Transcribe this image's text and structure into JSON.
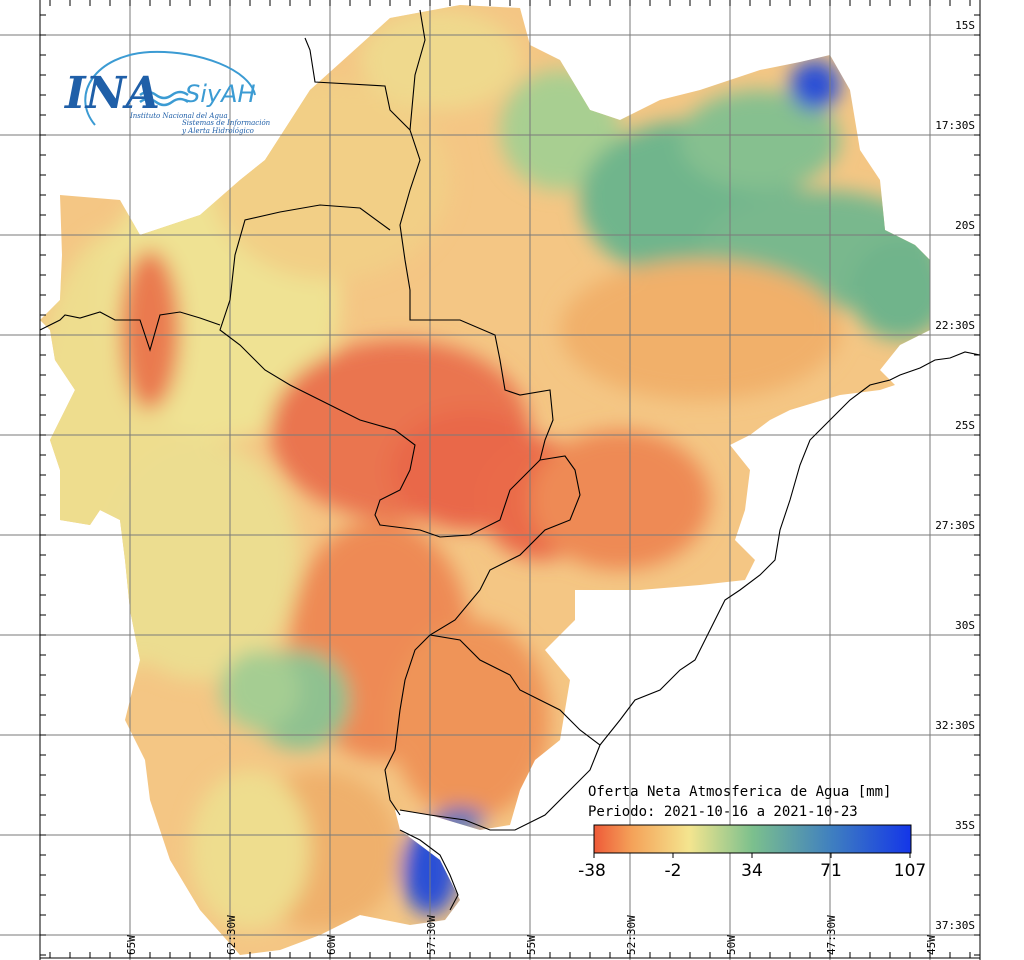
{
  "logo": {
    "main": "INA",
    "secondary": "SiyAH",
    "subtitle_1": "Instituto Nacional del Agua",
    "subtitle_2": "Sistemas de Información",
    "subtitle_3": "y Alerta Hidrológico"
  },
  "legend": {
    "title": "Oferta Neta Atmosferica de Agua [mm]",
    "period": "Periodo: 2021-10-16 a 2021-10-23",
    "ticks": [
      "-38",
      "-2",
      "34",
      "71",
      "107"
    ],
    "colors": [
      "#ee5a38",
      "#f4a259",
      "#f4e58f",
      "#7cc08d",
      "#3f7fc0",
      "#1436e8"
    ]
  },
  "graticule": {
    "lat_labels": [
      "15S",
      "17:30S",
      "20S",
      "22:30S",
      "25S",
      "27:30S",
      "30S",
      "32:30S",
      "35S",
      "37:30S"
    ],
    "lon_labels": [
      "65W",
      "62:30W",
      "60W",
      "57:30W",
      "55W",
      "52:30W",
      "50W",
      "47:30W",
      "45W"
    ]
  }
}
